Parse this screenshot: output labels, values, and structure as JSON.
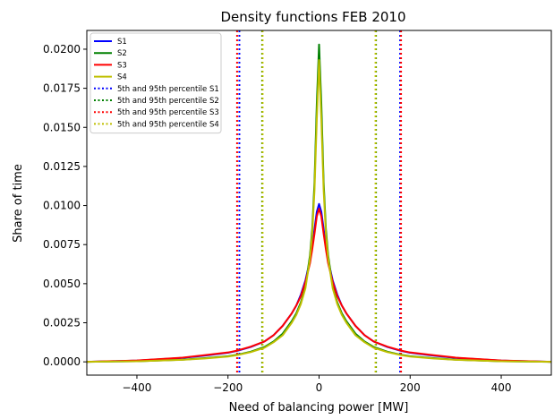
{
  "chart_data": {
    "type": "line",
    "title": "Density functions FEB 2010",
    "xlabel": "Need of balancing power [MW]",
    "ylabel": "Share of time",
    "xlim": [
      -510,
      510
    ],
    "ylim": [
      -0.00085,
      0.0212
    ],
    "xticks": [
      -400,
      -200,
      0,
      200,
      400
    ],
    "xtick_labels": [
      "−400",
      "−200",
      "0",
      "200",
      "400"
    ],
    "yticks": [
      0.0,
      0.0025,
      0.005,
      0.0075,
      0.01,
      0.0125,
      0.015,
      0.0175,
      0.02
    ],
    "ytick_labels": [
      "0.0000",
      "0.0025",
      "0.0050",
      "0.0075",
      "0.0100",
      "0.0125",
      "0.0150",
      "0.0175",
      "0.0200"
    ],
    "grid": false,
    "legend_position": "top-left",
    "x": [
      -510,
      -400,
      -300,
      -250,
      -200,
      -180,
      -150,
      -120,
      -100,
      -80,
      -60,
      -50,
      -40,
      -30,
      -20,
      -15,
      -10,
      -5,
      0,
      5,
      10,
      15,
      20,
      30,
      40,
      50,
      60,
      80,
      100,
      120,
      150,
      180,
      200,
      250,
      300,
      400,
      510
    ],
    "series": [
      {
        "name": "S1",
        "color": "#0000ff",
        "values": [
          0.0,
          8e-05,
          0.00025,
          0.0004,
          0.00058,
          0.0007,
          0.00095,
          0.0013,
          0.0017,
          0.0023,
          0.0031,
          0.0036,
          0.0043,
          0.0052,
          0.0065,
          0.0074,
          0.0085,
          0.0096,
          0.0101,
          0.0096,
          0.0085,
          0.0074,
          0.0065,
          0.0052,
          0.0043,
          0.0036,
          0.0031,
          0.0023,
          0.0017,
          0.0013,
          0.00095,
          0.0007,
          0.00058,
          0.0004,
          0.00025,
          8e-05,
          0.0
        ]
      },
      {
        "name": "S2",
        "color": "#008000",
        "values": [
          0.0,
          4e-05,
          0.00014,
          0.00024,
          0.00036,
          0.00045,
          0.00065,
          0.00095,
          0.0013,
          0.0018,
          0.0026,
          0.0031,
          0.0038,
          0.0048,
          0.0068,
          0.0085,
          0.0115,
          0.0165,
          0.0203,
          0.0165,
          0.0115,
          0.0085,
          0.0068,
          0.0048,
          0.0038,
          0.0031,
          0.0026,
          0.0018,
          0.0013,
          0.00095,
          0.00065,
          0.00045,
          0.00036,
          0.00024,
          0.00014,
          4e-05,
          0.0
        ]
      },
      {
        "name": "S3",
        "color": "#ff0000",
        "values": [
          0.0,
          9e-05,
          0.00027,
          0.00043,
          0.0006,
          0.00072,
          0.00097,
          0.0013,
          0.0017,
          0.0023,
          0.0031,
          0.0036,
          0.0042,
          0.0051,
          0.0063,
          0.0072,
          0.0082,
          0.0093,
          0.0098,
          0.0093,
          0.0082,
          0.0072,
          0.0063,
          0.0051,
          0.0042,
          0.0036,
          0.0031,
          0.0023,
          0.0017,
          0.0013,
          0.00097,
          0.00072,
          0.0006,
          0.00043,
          0.00027,
          9e-05,
          0.0
        ]
      },
      {
        "name": "S4",
        "color": "#bfbf00",
        "values": [
          0.0,
          4e-05,
          0.00013,
          0.00022,
          0.00034,
          0.00043,
          0.00062,
          0.0009,
          0.00125,
          0.0017,
          0.0025,
          0.003,
          0.0037,
          0.0047,
          0.0066,
          0.0082,
          0.011,
          0.0155,
          0.0193,
          0.0155,
          0.011,
          0.0082,
          0.0066,
          0.0047,
          0.0037,
          0.003,
          0.0025,
          0.0017,
          0.00125,
          0.0009,
          0.00062,
          0.00043,
          0.00034,
          0.00022,
          0.00013,
          4e-05,
          0.0
        ]
      }
    ],
    "percentile_lines": [
      {
        "name": "5th and 95th percentile S1",
        "color": "#0000ff",
        "x": [
          -175,
          178
        ]
      },
      {
        "name": "5th and 95th percentile S2",
        "color": "#008000",
        "x": [
          -125,
          125
        ]
      },
      {
        "name": "5th and 95th percentile S3",
        "color": "#ff0000",
        "x": [
          -180,
          180
        ]
      },
      {
        "name": "5th and 95th percentile S4",
        "color": "#bfbf00",
        "x": [
          -124,
          124
        ]
      }
    ]
  }
}
